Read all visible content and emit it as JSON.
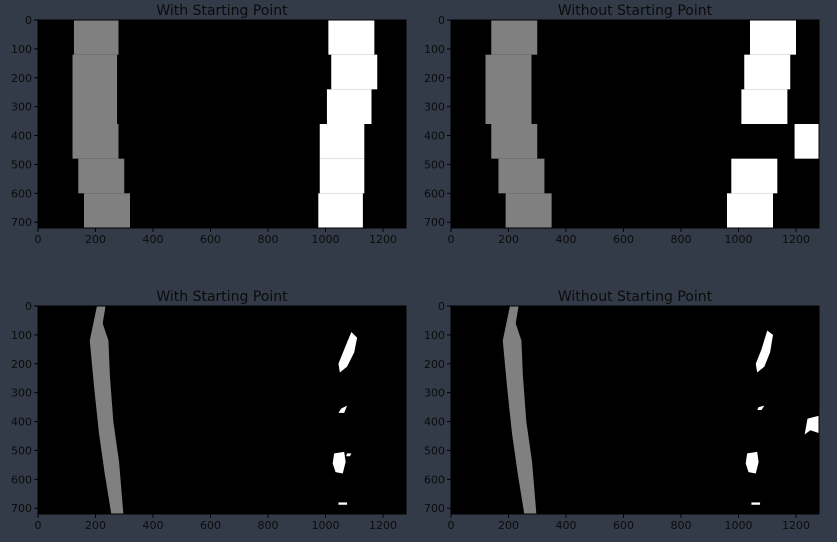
{
  "chart_data": [
    {
      "type": "heatmap",
      "title": "With Starting Point",
      "xlim": [
        0,
        1280
      ],
      "ylim": [
        720,
        0
      ],
      "xticks": [
        0,
        200,
        400,
        600,
        800,
        1000,
        1200
      ],
      "yticks": [
        0,
        100,
        200,
        300,
        400,
        500,
        600,
        700
      ],
      "grid": false,
      "colors": {
        "background": "#000000",
        "left_lane": "#808080",
        "right_lane": "#ffffff"
      },
      "left_boxes": [
        [
          125,
          0,
          280,
          120
        ],
        [
          120,
          120,
          275,
          360
        ],
        [
          120,
          360,
          280,
          480
        ],
        [
          140,
          480,
          300,
          600
        ],
        [
          160,
          600,
          320,
          720
        ]
      ],
      "right_boxes": [
        [
          1010,
          0,
          1170,
          120
        ],
        [
          1020,
          120,
          1180,
          240
        ],
        [
          1005,
          240,
          1160,
          360
        ],
        [
          980,
          360,
          1135,
          480
        ],
        [
          980,
          480,
          1135,
          600
        ],
        [
          975,
          600,
          1130,
          720
        ]
      ],
      "left_pixels": [],
      "right_pixels": []
    },
    {
      "type": "heatmap",
      "title": "Without Starting Point",
      "xlim": [
        0,
        1280
      ],
      "ylim": [
        720,
        0
      ],
      "xticks": [
        0,
        200,
        400,
        600,
        800,
        1000,
        1200
      ],
      "yticks": [
        0,
        100,
        200,
        300,
        400,
        500,
        600,
        700
      ],
      "grid": false,
      "colors": {
        "background": "#000000",
        "left_lane": "#808080",
        "right_lane": "#ffffff"
      },
      "left_boxes": [
        [
          140,
          0,
          300,
          120
        ],
        [
          120,
          120,
          280,
          360
        ],
        [
          140,
          360,
          300,
          480
        ],
        [
          165,
          480,
          325,
          600
        ],
        [
          190,
          600,
          350,
          720
        ]
      ],
      "right_boxes": [
        [
          1040,
          0,
          1200,
          120
        ],
        [
          1020,
          120,
          1180,
          240
        ],
        [
          1010,
          240,
          1170,
          360
        ],
        [
          1195,
          360,
          1280,
          480
        ],
        [
          975,
          480,
          1135,
          600
        ],
        [
          960,
          600,
          1120,
          720
        ]
      ],
      "left_pixels": [],
      "right_pixels": []
    },
    {
      "type": "heatmap",
      "title": "With Starting Point",
      "xlim": [
        0,
        1280
      ],
      "ylim": [
        720,
        0
      ],
      "xticks": [
        0,
        200,
        400,
        600,
        800,
        1000,
        1200
      ],
      "yticks": [
        0,
        100,
        200,
        300,
        400,
        500,
        600,
        700
      ],
      "grid": false,
      "colors": {
        "background": "#000000",
        "left_lane": "#808080",
        "right_lane": "#ffffff"
      },
      "left_boxes": [],
      "right_boxes": [],
      "left_pixels": [
        [
          [
            205,
            0
          ],
          [
            235,
            0
          ],
          [
            225,
            60
          ],
          [
            245,
            120
          ],
          [
            250,
            240
          ],
          [
            262,
            400
          ],
          [
            282,
            540
          ],
          [
            297,
            720
          ],
          [
            255,
            720
          ],
          [
            232,
            580
          ],
          [
            212,
            440
          ],
          [
            195,
            280
          ],
          [
            180,
            120
          ]
        ]
      ],
      "right_pixels": [
        [
          [
            1090,
            90
          ],
          [
            1110,
            110
          ],
          [
            1100,
            160
          ],
          [
            1075,
            210
          ],
          [
            1050,
            230
          ],
          [
            1045,
            200
          ],
          [
            1065,
            150
          ]
        ],
        [
          [
            1055,
            355
          ],
          [
            1075,
            345
          ],
          [
            1065,
            370
          ],
          [
            1045,
            370
          ]
        ],
        [
          [
            1030,
            510
          ],
          [
            1065,
            505
          ],
          [
            1070,
            540
          ],
          [
            1060,
            580
          ],
          [
            1035,
            575
          ],
          [
            1025,
            545
          ]
        ],
        [
          [
            1075,
            510
          ],
          [
            1090,
            510
          ],
          [
            1085,
            520
          ],
          [
            1072,
            520
          ]
        ],
        [
          [
            1045,
            680
          ],
          [
            1075,
            680
          ],
          [
            1075,
            688
          ],
          [
            1045,
            688
          ]
        ]
      ]
    },
    {
      "type": "heatmap",
      "title": "Without Starting Point",
      "xlim": [
        0,
        1280
      ],
      "ylim": [
        720,
        0
      ],
      "xticks": [
        0,
        200,
        400,
        600,
        800,
        1000,
        1200
      ],
      "yticks": [
        0,
        100,
        200,
        300,
        400,
        500,
        600,
        700
      ],
      "grid": false,
      "colors": {
        "background": "#000000",
        "left_lane": "#808080",
        "right_lane": "#ffffff"
      },
      "left_boxes": [],
      "right_boxes": [],
      "left_pixels": [
        [
          [
            205,
            0
          ],
          [
            235,
            0
          ],
          [
            225,
            60
          ],
          [
            245,
            120
          ],
          [
            250,
            240
          ],
          [
            262,
            400
          ],
          [
            282,
            540
          ],
          [
            297,
            720
          ],
          [
            255,
            720
          ],
          [
            232,
            580
          ],
          [
            212,
            440
          ],
          [
            195,
            280
          ],
          [
            180,
            120
          ]
        ]
      ],
      "right_pixels": [
        [
          [
            1100,
            85
          ],
          [
            1120,
            100
          ],
          [
            1110,
            160
          ],
          [
            1090,
            210
          ],
          [
            1065,
            230
          ],
          [
            1060,
            200
          ],
          [
            1080,
            150
          ]
        ],
        [
          [
            1070,
            350
          ],
          [
            1090,
            345
          ],
          [
            1080,
            360
          ],
          [
            1065,
            360
          ]
        ],
        [
          [
            1030,
            510
          ],
          [
            1065,
            505
          ],
          [
            1070,
            540
          ],
          [
            1060,
            580
          ],
          [
            1035,
            575
          ],
          [
            1025,
            545
          ]
        ],
        [
          [
            1240,
            390
          ],
          [
            1280,
            380
          ],
          [
            1280,
            440
          ],
          [
            1250,
            430
          ],
          [
            1230,
            445
          ]
        ],
        [
          [
            1045,
            680
          ],
          [
            1075,
            680
          ],
          [
            1075,
            688
          ],
          [
            1045,
            688
          ]
        ]
      ]
    }
  ]
}
